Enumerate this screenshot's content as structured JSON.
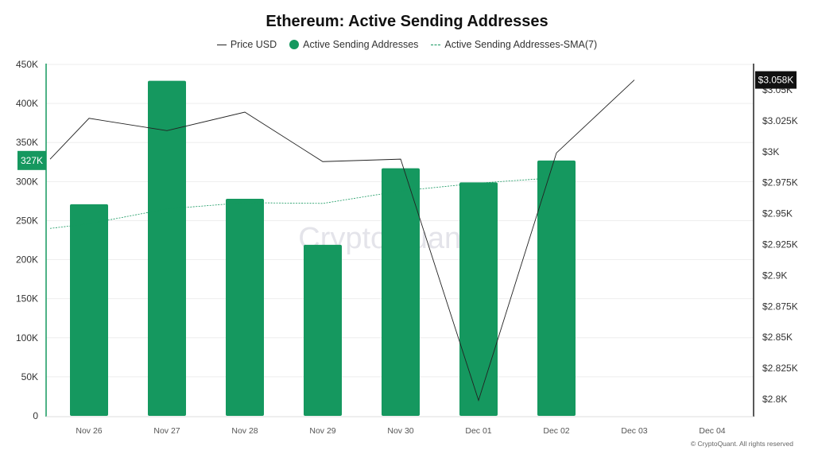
{
  "title": "Ethereum: Active Sending Addresses",
  "legend": [
    {
      "label": "Price USD",
      "type": "line",
      "color": "#222222"
    },
    {
      "label": "Active Sending Addresses",
      "type": "bar",
      "color": "#15985f"
    },
    {
      "label": "Active Sending Addresses-SMA(7)",
      "type": "dashed-line",
      "color": "#15985f"
    }
  ],
  "watermark": "CryptoQuant",
  "copyright": "© CryptoQuant. All rights reserved",
  "left_axis": {
    "ticks": [
      "0",
      "50K",
      "100K",
      "150K",
      "200K",
      "250K",
      "300K",
      "350K",
      "400K",
      "450K"
    ],
    "highlight_label": "327K",
    "highlight_value": 327000
  },
  "right_axis": {
    "ticks": [
      "$2.8K",
      "$2.825K",
      "$2.85K",
      "$2.875K",
      "$2.9K",
      "$2.925K",
      "$2.95K",
      "$2.975K",
      "$3K",
      "$3.025K",
      "$3.05K"
    ],
    "highlight_label": "$3.058K",
    "highlight_value": 3058
  },
  "colors": {
    "bar": "#15985f",
    "price": "#222222",
    "sma": "#15985f",
    "grid": "#eeeeee",
    "left_axis": "#15985f",
    "right_axis": "#222222"
  },
  "chart_data": {
    "type": "bar",
    "title": "Ethereum: Active Sending Addresses",
    "categories": [
      "Nov 26",
      "Nov 27",
      "Nov 28",
      "Nov 29",
      "Nov 30",
      "Dec 01",
      "Dec 02",
      "Dec 03",
      "Dec 04"
    ],
    "series": [
      {
        "name": "Active Sending Addresses",
        "type": "bar",
        "axis": "left",
        "values": [
          271000,
          429000,
          278000,
          219000,
          317000,
          299000,
          327000,
          null,
          null
        ]
      },
      {
        "name": "Active Sending Addresses-SMA(7)",
        "type": "line",
        "axis": "left",
        "start_value": 240000,
        "values": [
          246000,
          265000,
          273000,
          272000,
          288000,
          298000,
          305000,
          null,
          null
        ]
      },
      {
        "name": "Price USD",
        "type": "line",
        "axis": "right",
        "start_value": 2994,
        "values": [
          3027,
          3017,
          3032,
          2992,
          2994,
          2799,
          2999,
          3058,
          null
        ]
      }
    ],
    "ylabel_left": "Active Sending Addresses",
    "ylabel_right": "Price USD",
    "ylim_left": [
      0,
      450000
    ],
    "ylim_right": [
      2787,
      3071
    ],
    "grid": true,
    "legend_position": "top"
  }
}
